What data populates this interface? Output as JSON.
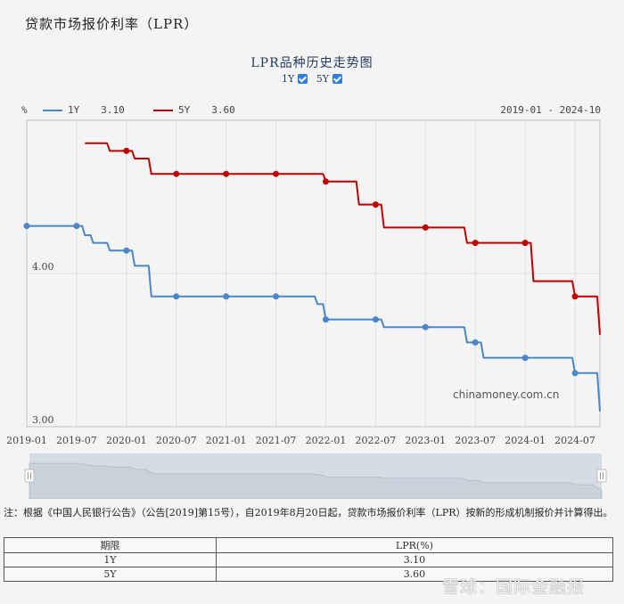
{
  "page": {
    "title": "贷款市场报价利率（LPR）"
  },
  "chart": {
    "title": "LPR品种历史走势图",
    "toggles": [
      {
        "label": "1Y",
        "checked": true
      },
      {
        "label": "5Y",
        "checked": true
      }
    ],
    "unit": "%",
    "legend": [
      {
        "name": "1Y",
        "value": "3.10",
        "color": "#4a86c8"
      },
      {
        "name": "5Y",
        "value": "3.60",
        "color": "#c00000"
      }
    ],
    "date_range": "2019-01 - 2024-10",
    "y_ticks": [
      "4.00",
      "3.00"
    ],
    "x_ticks": [
      "2019-01",
      "2019-07",
      "2020-01",
      "2020-07",
      "2021-01",
      "2021-07",
      "2022-01",
      "2022-07",
      "2023-01",
      "2023-07",
      "2024-01",
      "2024-07"
    ],
    "watermark": "chinamoney.com.cn"
  },
  "chart_data": {
    "type": "line",
    "title": "LPR品种历史走势图",
    "xlabel": "",
    "ylabel": "%",
    "ylim": [
      3.0,
      5.0
    ],
    "x_range": [
      "2019-01",
      "2024-10"
    ],
    "grid": true,
    "legend_position": "top-left",
    "x": [
      "2019-01",
      "2019-02",
      "2019-03",
      "2019-04",
      "2019-05",
      "2019-06",
      "2019-07",
      "2019-08",
      "2019-09",
      "2019-10",
      "2019-11",
      "2019-12",
      "2020-01",
      "2020-02",
      "2020-03",
      "2020-04",
      "2020-05",
      "2020-06",
      "2020-07",
      "2020-08",
      "2020-09",
      "2020-10",
      "2020-11",
      "2020-12",
      "2021-01",
      "2021-02",
      "2021-03",
      "2021-04",
      "2021-05",
      "2021-06",
      "2021-07",
      "2021-08",
      "2021-09",
      "2021-10",
      "2021-11",
      "2021-12",
      "2022-01",
      "2022-02",
      "2022-03",
      "2022-04",
      "2022-05",
      "2022-06",
      "2022-07",
      "2022-08",
      "2022-09",
      "2022-10",
      "2022-11",
      "2022-12",
      "2023-01",
      "2023-02",
      "2023-03",
      "2023-04",
      "2023-05",
      "2023-06",
      "2023-07",
      "2023-08",
      "2023-09",
      "2023-10",
      "2023-11",
      "2023-12",
      "2024-01",
      "2024-02",
      "2024-03",
      "2024-04",
      "2024-05",
      "2024-06",
      "2024-07",
      "2024-08",
      "2024-09",
      "2024-10"
    ],
    "series": [
      {
        "name": "1Y",
        "color": "#4a86c8",
        "values": [
          4.31,
          4.31,
          4.31,
          4.31,
          4.31,
          4.31,
          4.31,
          4.25,
          4.2,
          4.2,
          4.15,
          4.15,
          4.15,
          4.05,
          4.05,
          3.85,
          3.85,
          3.85,
          3.85,
          3.85,
          3.85,
          3.85,
          3.85,
          3.85,
          3.85,
          3.85,
          3.85,
          3.85,
          3.85,
          3.85,
          3.85,
          3.85,
          3.85,
          3.85,
          3.85,
          3.8,
          3.7,
          3.7,
          3.7,
          3.7,
          3.7,
          3.7,
          3.7,
          3.65,
          3.65,
          3.65,
          3.65,
          3.65,
          3.65,
          3.65,
          3.65,
          3.65,
          3.65,
          3.55,
          3.55,
          3.45,
          3.45,
          3.45,
          3.45,
          3.45,
          3.45,
          3.45,
          3.45,
          3.45,
          3.45,
          3.45,
          3.35,
          3.35,
          3.35,
          3.1
        ]
      },
      {
        "name": "5Y",
        "color": "#c00000",
        "values": [
          null,
          null,
          null,
          null,
          null,
          null,
          null,
          4.85,
          4.85,
          4.85,
          4.8,
          4.8,
          4.8,
          4.75,
          4.75,
          4.65,
          4.65,
          4.65,
          4.65,
          4.65,
          4.65,
          4.65,
          4.65,
          4.65,
          4.65,
          4.65,
          4.65,
          4.65,
          4.65,
          4.65,
          4.65,
          4.65,
          4.65,
          4.65,
          4.65,
          4.65,
          4.6,
          4.6,
          4.6,
          4.6,
          4.45,
          4.45,
          4.45,
          4.3,
          4.3,
          4.3,
          4.3,
          4.3,
          4.3,
          4.3,
          4.3,
          4.3,
          4.3,
          4.2,
          4.2,
          4.2,
          4.2,
          4.2,
          4.2,
          4.2,
          4.2,
          3.95,
          3.95,
          3.95,
          3.95,
          3.95,
          3.85,
          3.85,
          3.85,
          3.6
        ]
      }
    ],
    "latest": {
      "1Y": 3.1,
      "5Y": 3.6
    }
  },
  "note": {
    "text": "注：根据《中国人民银行公告》（公告[2019]第15号），自2019年8月20日起，贷款市场报价利率（LPR）按新的形成机制报价并计算得出。"
  },
  "table": {
    "headers": [
      "期限",
      "LPR(%)"
    ],
    "rows": [
      [
        "1Y",
        "3.10"
      ],
      [
        "5Y",
        "3.60"
      ]
    ]
  },
  "overlay_watermark": "雪球：国际金融报"
}
